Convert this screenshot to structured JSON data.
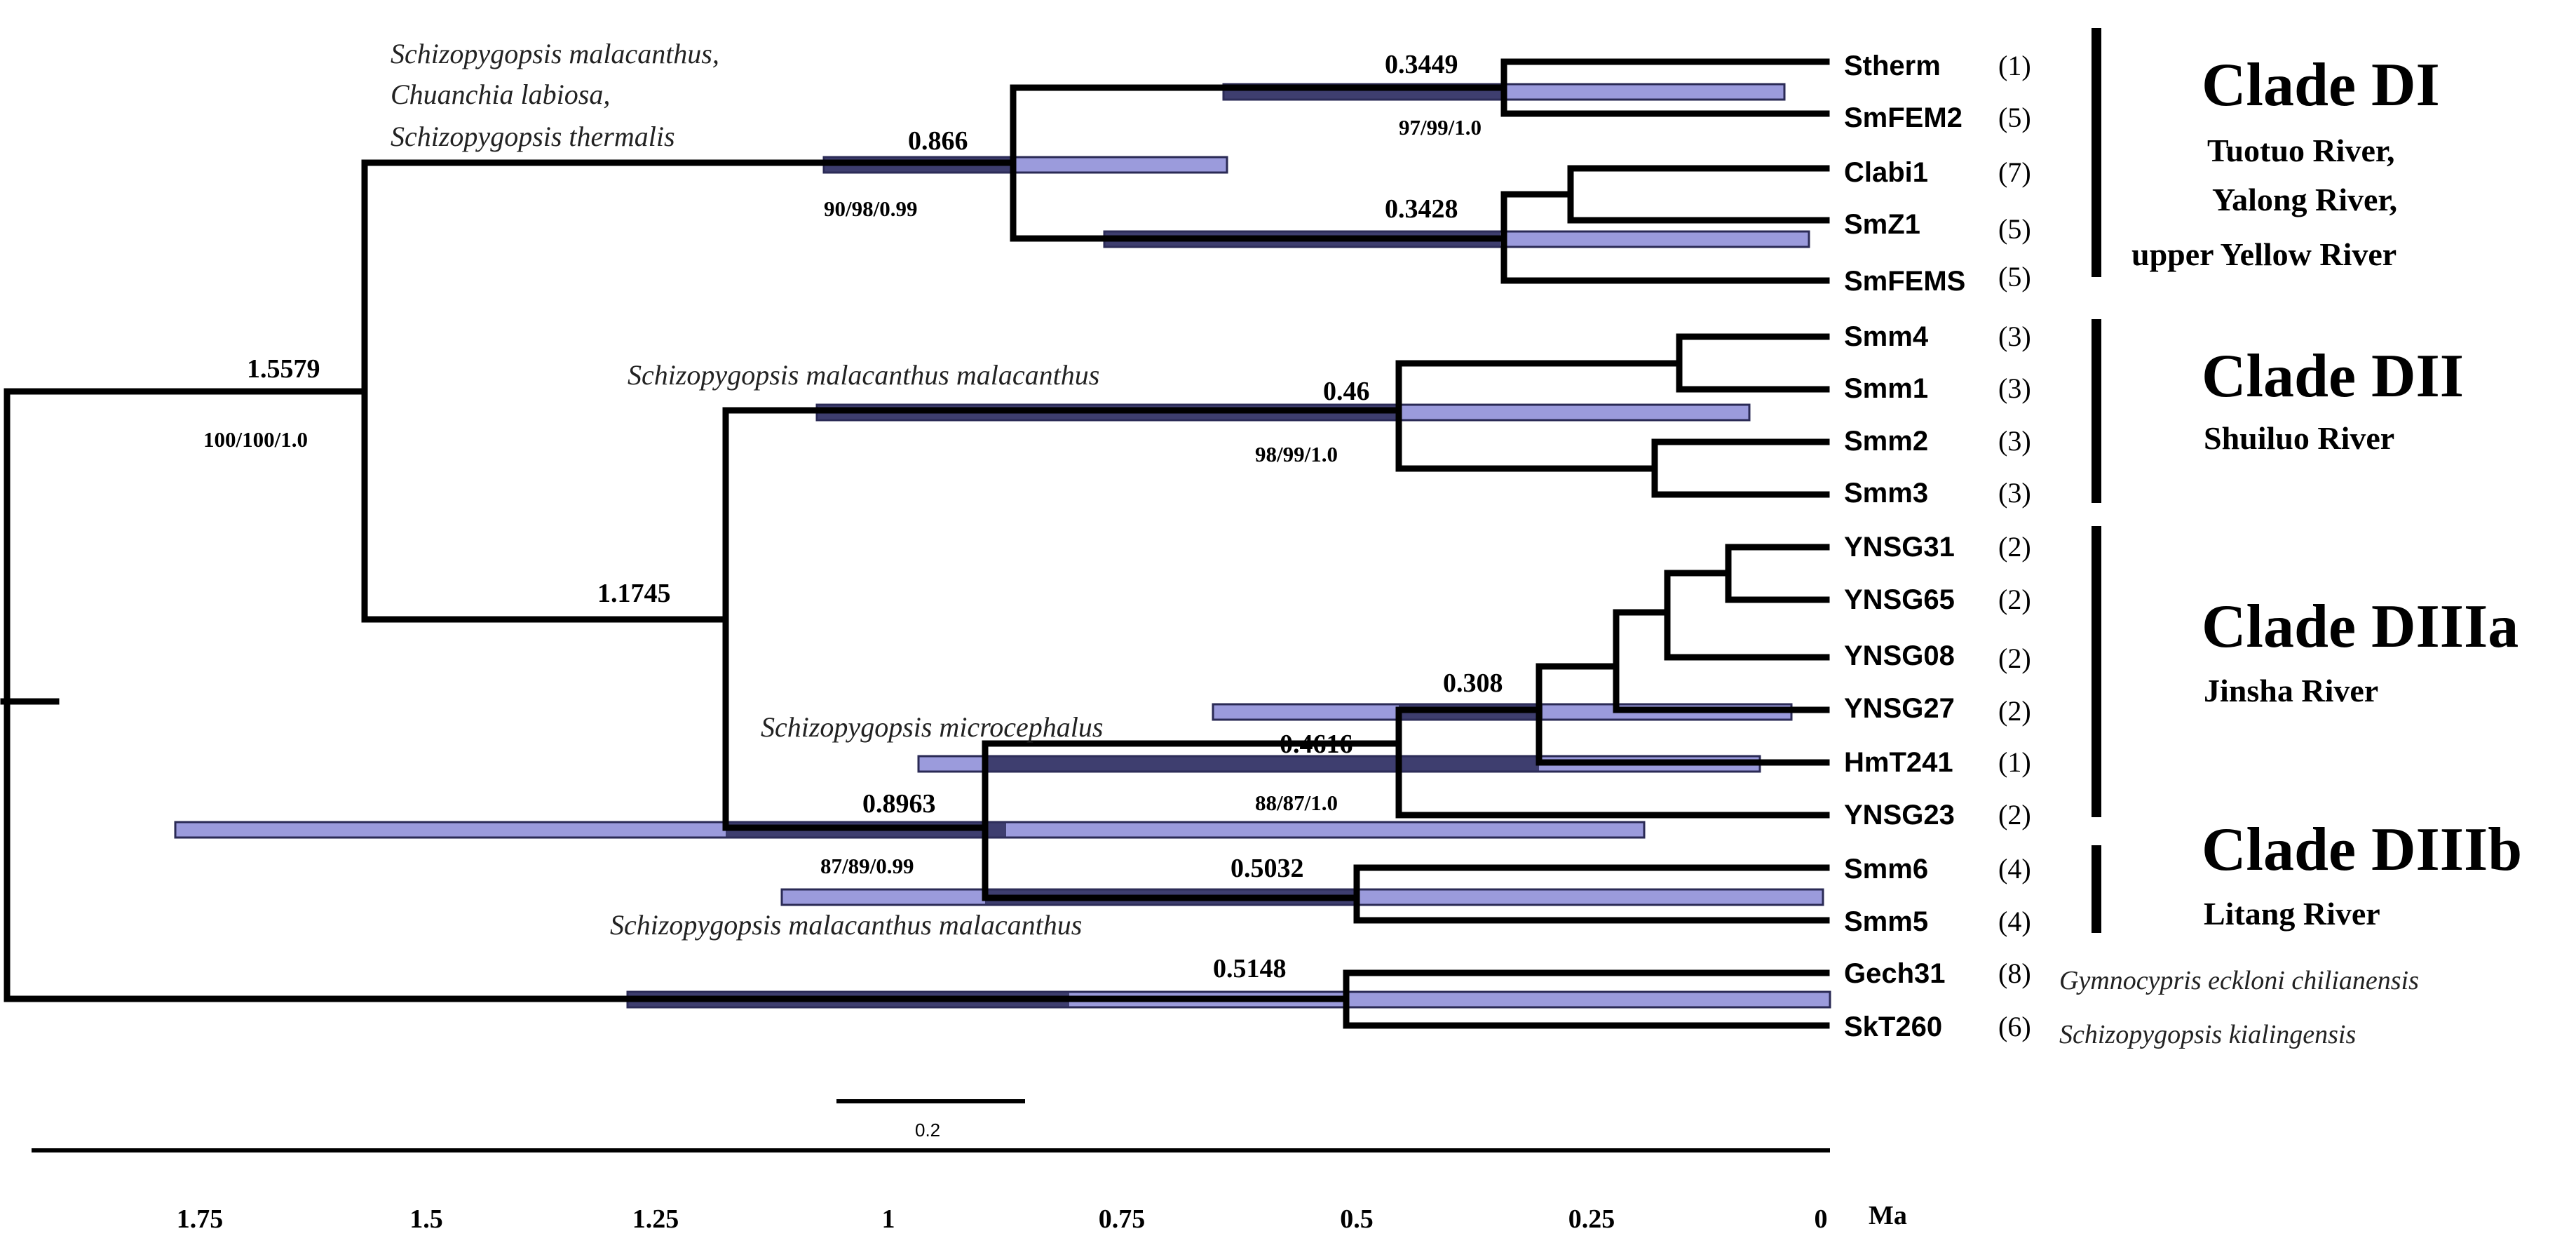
{
  "figure": {
    "type": "dated-phylogeny",
    "axis_unit": "Ma",
    "axis_ticks": [
      "1.75",
      "1.5",
      "1.25",
      "1",
      "0.75",
      "0.5",
      "0.25",
      "0"
    ],
    "scale_bar_label": "0.2"
  },
  "tips": [
    {
      "name": "Stherm",
      "count": "(1)"
    },
    {
      "name": "SmFEM2",
      "count": "(5)"
    },
    {
      "name": "Clabi1",
      "count": "(7)"
    },
    {
      "name": "SmZ1",
      "count": "(5)"
    },
    {
      "name": "SmFEMS",
      "count": "(5)"
    },
    {
      "name": "Smm4",
      "count": "(3)"
    },
    {
      "name": "Smm1",
      "count": "(3)"
    },
    {
      "name": "Smm2",
      "count": "(3)"
    },
    {
      "name": "Smm3",
      "count": "(3)"
    },
    {
      "name": "YNSG31",
      "count": "(2)"
    },
    {
      "name": "YNSG65",
      "count": "(2)"
    },
    {
      "name": "YNSG08",
      "count": "(2)"
    },
    {
      "name": "YNSG27",
      "count": "(2)"
    },
    {
      "name": "HmT241",
      "count": "(1)"
    },
    {
      "name": "YNSG23",
      "count": "(2)"
    },
    {
      "name": "Smm6",
      "count": "(4)"
    },
    {
      "name": "Smm5",
      "count": "(4)"
    },
    {
      "name": "Gech31",
      "count": "(8)"
    },
    {
      "name": "SkT260",
      "count": "(6)"
    }
  ],
  "node_labels": {
    "age_0_3449": "0.3449",
    "support_97_99": "97/99/1.0",
    "age_0_866": "0.866",
    "support_90_98": "90/98/0.99",
    "age_0_3428": "0.3428",
    "age_1_5579": "1.5579",
    "support_100_100": "100/100/1.0",
    "age_0_46": "0.46",
    "support_98_99": "98/99/1.0",
    "age_1_1745": "1.1745",
    "age_0_308": "0.308",
    "age_0_4616": "0.4616",
    "age_0_8963": "0.8963",
    "support_88_87": "88/87/1.0",
    "support_87_89": "87/89/0.99",
    "age_0_5032": "0.5032",
    "age_0_5148": "0.5148"
  },
  "species_labels": {
    "sp_malacanthus": "Schizopygopsis malacanthus,",
    "sp_chuanchia": "Chuanchia labiosa,",
    "sp_thermalis": "Schizopygopsis thermalis",
    "sp_mm_top": "Schizopygopsis malacanthus malacanthus",
    "sp_microcephalus": "Schizopygopsis microcephalus",
    "sp_mm_bottom": "Schizopygopsis malacanthus malacanthus",
    "sp_gymnocypris": "Gymnocypris eckloni chilianensis",
    "sp_kialingensis": "Schizopygopsis kialingensis"
  },
  "clades": [
    {
      "title": "Clade DI",
      "rivers": [
        "Tuotuo River,",
        "Yalong River,",
        "upper Yellow River"
      ]
    },
    {
      "title": "Clade DII",
      "rivers": [
        "Shuiluo River"
      ]
    },
    {
      "title": "Clade DIIIa",
      "rivers": [
        "Jinsha River"
      ]
    },
    {
      "title": "Clade DIIIb",
      "rivers": [
        "Litang River"
      ]
    }
  ]
}
